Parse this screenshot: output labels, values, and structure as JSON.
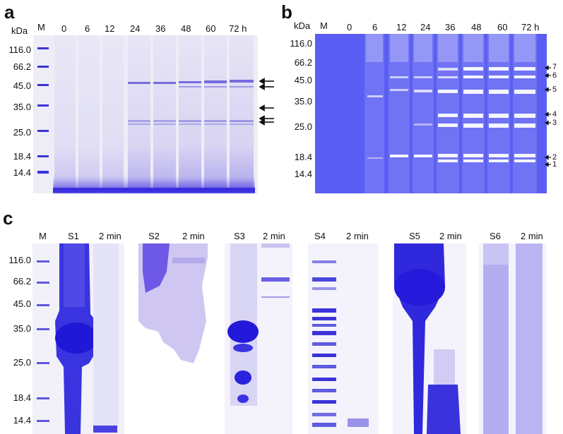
{
  "panel_a": {
    "letter": "a",
    "kda": "kDa",
    "marker": "M",
    "lanes": [
      "0",
      "6",
      "12",
      "24",
      "36",
      "48",
      "60",
      "72 h"
    ],
    "mw": [
      "116.0",
      "66.2",
      "45.0",
      "35.0",
      "25.0",
      "18.4",
      "14.4"
    ]
  },
  "panel_b": {
    "letter": "b",
    "kda": "kDa",
    "marker": "M",
    "lanes": [
      "0",
      "6",
      "12",
      "24",
      "36",
      "48",
      "60",
      "72 h"
    ],
    "mw": [
      "116.0",
      "66.2",
      "45.0",
      "35.0",
      "25.0",
      "18.4",
      "14.4"
    ],
    "bands": [
      "7",
      "6",
      "5",
      "4",
      "3",
      "2",
      "1"
    ]
  },
  "panel_c": {
    "letter": "c",
    "marker": "M",
    "mw": [
      "116.0",
      "66.2",
      "45.0",
      "35.0",
      "25.0",
      "18.4",
      "14.4"
    ],
    "samples": [
      {
        "name": "S1",
        "time": "2 min"
      },
      {
        "name": "S2",
        "time": "2 min"
      },
      {
        "name": "S3",
        "time": "2 min"
      },
      {
        "name": "S4",
        "time": "2 min"
      },
      {
        "name": "S5",
        "time": "2 min"
      },
      {
        "name": "S6",
        "time": "2 min"
      }
    ]
  },
  "colors": {
    "stain_dark": "#2b1fd6",
    "stain_mid": "#6a5ef0",
    "gel_light": "#eceaf8",
    "gel_b": "#5b5cf0"
  }
}
